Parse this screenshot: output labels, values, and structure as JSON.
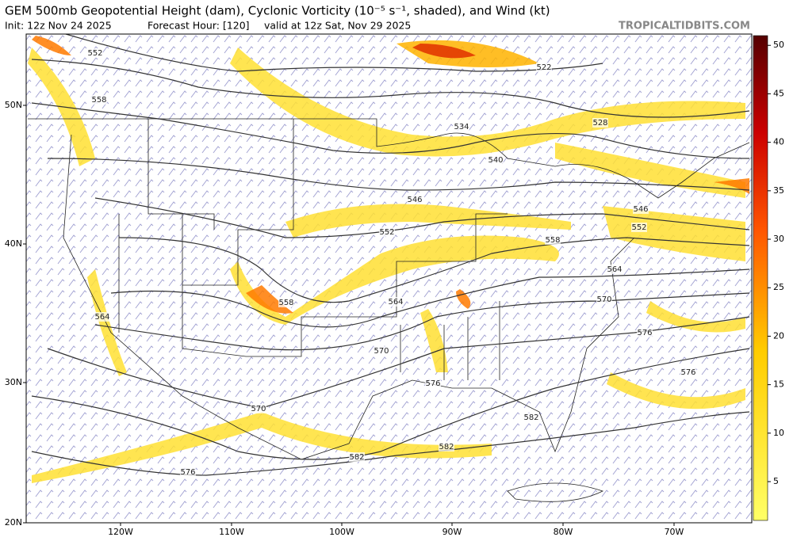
{
  "header": {
    "title": "GEM 500mb Geopotential Height (dam), Cyclonic Vorticity (10⁻⁵ s⁻¹, shaded), and Wind (kt)",
    "init": "Init: 12z Nov 24 2025",
    "forecast_hour": "Forecast Hour: [120]",
    "valid": "valid at 12z Sat, Nov 29 2025",
    "site": "TROPICALTIDBITS.COM"
  },
  "map": {
    "latitude_labels": [
      "50N",
      "40N",
      "30N",
      "20N"
    ],
    "longitude_labels": [
      "120W",
      "110W",
      "100W",
      "90W",
      "80W",
      "70W"
    ],
    "contour_labels": [
      "552",
      "558",
      "522",
      "534",
      "528",
      "540",
      "546",
      "552",
      "558",
      "564",
      "570",
      "576",
      "582",
      "558",
      "564",
      "570",
      "576",
      "582",
      "546",
      "552",
      "564",
      "570",
      "576",
      "582",
      "576"
    ]
  },
  "colorbar": {
    "range": [
      1,
      51
    ],
    "ticks": [
      5,
      10,
      15,
      20,
      25,
      30,
      35,
      40,
      45,
      50
    ]
  }
}
